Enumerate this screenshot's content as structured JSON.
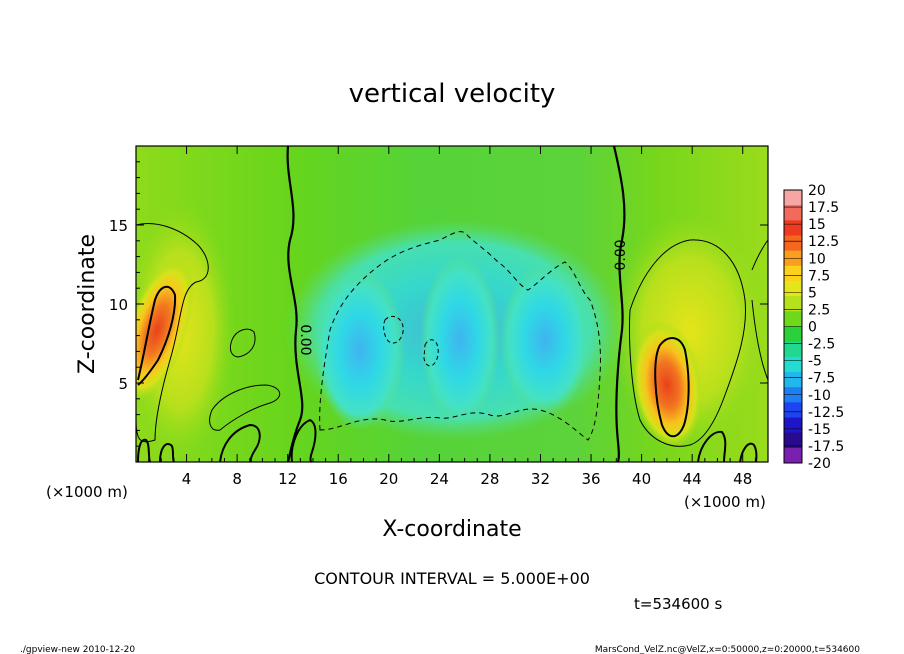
{
  "chart_data": {
    "type": "heatmap",
    "title": "vertical velocity",
    "xlabel": "X-coordinate",
    "ylabel": "Z-coordinate",
    "x_unit_left": "(×1000 m)",
    "x_unit_right": "(×1000 m)",
    "xlim": [
      0,
      50
    ],
    "ylim": [
      0,
      20
    ],
    "xticks": [
      "4",
      "8",
      "12",
      "16",
      "20",
      "24",
      "28",
      "32",
      "36",
      "40",
      "44",
      "48"
    ],
    "xtick_values": [
      4,
      8,
      12,
      16,
      20,
      24,
      28,
      32,
      36,
      40,
      44,
      48
    ],
    "yticks": [
      "5",
      "10",
      "15"
    ],
    "ytick_values": [
      5,
      10,
      15
    ],
    "colorbar": {
      "labels": [
        "20",
        "17.5",
        "15",
        "12.5",
        "10",
        "7.5",
        "5",
        "2.5",
        "0",
        "-2.5",
        "-5",
        "-7.5",
        "-10",
        "-12.5",
        "-15",
        "-17.5",
        "-20"
      ],
      "colors": [
        "#f7a6a6",
        "#f26a5e",
        "#ee3b20",
        "#f5661f",
        "#fb9d1e",
        "#fcd11c",
        "#e6e51a",
        "#b5e21a",
        "#6ed81c",
        "#2bd13a",
        "#20d98e",
        "#22dcd2",
        "#22b7ec",
        "#1f7ef2",
        "#1d44f0",
        "#1e14c8",
        "#2a0a8c",
        "#7a20b0"
      ]
    },
    "zero_contour_label": "0.00",
    "contour_interval_text": "CONTOUR INTERVAL = 5.000E+00",
    "time_text": "t=534600 s",
    "features": [
      {
        "sign": "positive",
        "x_center": 1.5,
        "z_center": 8.0,
        "peak": 15
      },
      {
        "sign": "positive",
        "x_center": 42.0,
        "z_center": 5.5,
        "peak": 15
      },
      {
        "sign": "negative",
        "x_center": 18.0,
        "z_center": 8.0,
        "peak": -7.5
      },
      {
        "sign": "negative",
        "x_center": 25.5,
        "z_center": 8.0,
        "peak": -7.5
      },
      {
        "sign": "negative",
        "x_center": 32.0,
        "z_center": 7.5,
        "peak": -7.5
      }
    ]
  },
  "footer": {
    "left": "./gpview-new  2010-12-20",
    "right": "MarsCond_VelZ.nc@VelZ,x=0:50000,z=0:20000,t=534600"
  }
}
